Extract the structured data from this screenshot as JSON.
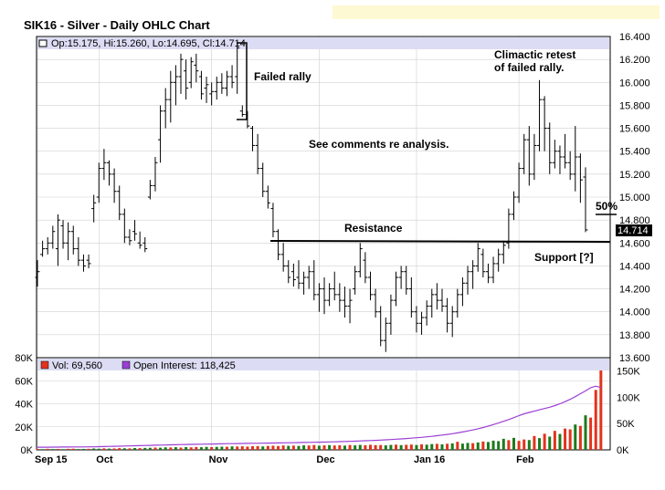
{
  "title": "SIK16 - Silver - Daily OHLC Chart",
  "colors": {
    "price_bar": "#000000",
    "volume_up": "#1c7a1c",
    "volume_down": "#e0341c",
    "open_interest": "#9b3fd4",
    "grid": "#d0d0d0",
    "legend_band": "#dcdcf4",
    "price_tag": "#000000"
  },
  "chart_data": [
    {
      "type": "ohlc",
      "title": "SIK16 - Silver - Daily OHLC Chart",
      "legend": {
        "open_label": "Op:15.175",
        "high_label": "Hi:15.260",
        "low_label": "Lo:14.695",
        "close_label": "Cl:14.714"
      },
      "ylim": [
        13.6,
        16.4
      ],
      "y_ticks": [
        "16.400",
        "16.200",
        "16.000",
        "15.800",
        "15.600",
        "15.400",
        "15.200",
        "15.000",
        "14.800",
        "14.600",
        "14.400",
        "14.200",
        "14.000",
        "13.800",
        "13.600"
      ],
      "last_price_label": "14.714",
      "x_ticks": [
        {
          "label": "Sep 15",
          "index": 0
        },
        {
          "label": "Oct",
          "index": 12
        },
        {
          "label": "Nov",
          "index": 34
        },
        {
          "label": "Dec",
          "index": 55
        },
        {
          "label": "Jan 16",
          "index": 74
        },
        {
          "label": "Feb",
          "index": 94
        }
      ],
      "bars": [
        {
          "o": 14.3,
          "h": 14.45,
          "l": 14.22,
          "c": 14.35
        },
        {
          "o": 14.5,
          "h": 14.62,
          "l": 14.48,
          "c": 14.55
        },
        {
          "o": 14.55,
          "h": 14.65,
          "l": 14.5,
          "c": 14.6
        },
        {
          "o": 14.6,
          "h": 14.75,
          "l": 14.55,
          "c": 14.7
        },
        {
          "o": 14.55,
          "h": 14.85,
          "l": 14.4,
          "c": 14.8
        },
        {
          "o": 14.75,
          "h": 14.8,
          "l": 14.55,
          "c": 14.6
        },
        {
          "o": 14.6,
          "h": 14.78,
          "l": 14.45,
          "c": 14.7
        },
        {
          "o": 14.7,
          "h": 14.75,
          "l": 14.5,
          "c": 14.55
        },
        {
          "o": 14.55,
          "h": 14.65,
          "l": 14.4,
          "c": 14.45
        },
        {
          "o": 14.45,
          "h": 14.5,
          "l": 14.35,
          "c": 14.4
        },
        {
          "o": 14.45,
          "h": 14.5,
          "l": 14.38,
          "c": 14.42
        },
        {
          "o": 14.9,
          "h": 15.02,
          "l": 14.78,
          "c": 14.95
        },
        {
          "o": 15.0,
          "h": 15.3,
          "l": 14.95,
          "c": 15.25
        },
        {
          "o": 15.25,
          "h": 15.42,
          "l": 15.15,
          "c": 15.3
        },
        {
          "o": 15.3,
          "h": 15.32,
          "l": 15.1,
          "c": 15.2
        },
        {
          "o": 15.2,
          "h": 15.25,
          "l": 14.95,
          "c": 15.05
        },
        {
          "o": 15.05,
          "h": 15.1,
          "l": 14.8,
          "c": 14.85
        },
        {
          "o": 14.85,
          "h": 14.9,
          "l": 14.6,
          "c": 14.65
        },
        {
          "o": 14.65,
          "h": 14.72,
          "l": 14.58,
          "c": 14.62
        },
        {
          "o": 14.7,
          "h": 14.8,
          "l": 14.62,
          "c": 14.68
        },
        {
          "o": 14.6,
          "h": 14.7,
          "l": 14.55,
          "c": 14.58
        },
        {
          "o": 14.6,
          "h": 14.65,
          "l": 14.52,
          "c": 14.55
        },
        {
          "o": 15.0,
          "h": 15.15,
          "l": 14.98,
          "c": 15.1
        },
        {
          "o": 15.1,
          "h": 15.35,
          "l": 15.05,
          "c": 15.3
        },
        {
          "o": 15.5,
          "h": 15.8,
          "l": 15.3,
          "c": 15.75
        },
        {
          "o": 15.75,
          "h": 15.95,
          "l": 15.6,
          "c": 15.85
        },
        {
          "o": 15.85,
          "h": 16.1,
          "l": 15.65,
          "c": 16.0
        },
        {
          "o": 16.0,
          "h": 16.15,
          "l": 15.8,
          "c": 16.05
        },
        {
          "o": 16.05,
          "h": 16.25,
          "l": 15.9,
          "c": 16.2
        },
        {
          "o": 16.1,
          "h": 16.2,
          "l": 15.85,
          "c": 15.95
        },
        {
          "o": 16.0,
          "h": 16.22,
          "l": 15.95,
          "c": 16.18
        },
        {
          "o": 16.15,
          "h": 16.25,
          "l": 16.0,
          "c": 16.1
        },
        {
          "o": 16.05,
          "h": 16.1,
          "l": 15.85,
          "c": 15.9
        },
        {
          "o": 15.95,
          "h": 16.05,
          "l": 15.82,
          "c": 15.98
        },
        {
          "o": 15.9,
          "h": 16.0,
          "l": 15.8,
          "c": 15.92
        },
        {
          "o": 15.92,
          "h": 16.05,
          "l": 15.85,
          "c": 16.0
        },
        {
          "o": 16.0,
          "h": 16.08,
          "l": 15.9,
          "c": 15.95
        },
        {
          "o": 15.95,
          "h": 16.1,
          "l": 15.88,
          "c": 16.05
        },
        {
          "o": 16.05,
          "h": 16.15,
          "l": 15.95,
          "c": 16.0
        },
        {
          "o": 16.05,
          "h": 16.35,
          "l": 15.9,
          "c": 16.3
        },
        {
          "o": 15.75,
          "h": 15.8,
          "l": 15.7,
          "c": 15.72
        },
        {
          "o": 15.72,
          "h": 15.75,
          "l": 15.6,
          "c": 15.62
        },
        {
          "o": 15.6,
          "h": 15.62,
          "l": 15.4,
          "c": 15.45
        },
        {
          "o": 15.45,
          "h": 15.55,
          "l": 15.2,
          "c": 15.25
        },
        {
          "o": 15.25,
          "h": 15.3,
          "l": 15.0,
          "c": 15.05
        },
        {
          "o": 15.05,
          "h": 15.1,
          "l": 14.9,
          "c": 14.95
        },
        {
          "o": 14.9,
          "h": 14.95,
          "l": 14.65,
          "c": 14.7
        },
        {
          "o": 14.7,
          "h": 14.72,
          "l": 14.45,
          "c": 14.5
        },
        {
          "o": 14.5,
          "h": 14.6,
          "l": 14.35,
          "c": 14.4
        },
        {
          "o": 14.4,
          "h": 14.45,
          "l": 14.25,
          "c": 14.3
        },
        {
          "o": 14.35,
          "h": 14.42,
          "l": 14.22,
          "c": 14.28
        },
        {
          "o": 14.3,
          "h": 14.45,
          "l": 14.2,
          "c": 14.25
        },
        {
          "o": 14.25,
          "h": 14.35,
          "l": 14.15,
          "c": 14.3
        },
        {
          "o": 14.3,
          "h": 14.4,
          "l": 14.2,
          "c": 14.35
        },
        {
          "o": 14.35,
          "h": 14.45,
          "l": 14.1,
          "c": 14.15
        },
        {
          "o": 14.15,
          "h": 14.25,
          "l": 14.0,
          "c": 14.2
        },
        {
          "o": 14.2,
          "h": 14.3,
          "l": 13.98,
          "c": 14.1
        },
        {
          "o": 14.1,
          "h": 14.25,
          "l": 14.05,
          "c": 14.2
        },
        {
          "o": 14.2,
          "h": 14.35,
          "l": 14.1,
          "c": 14.15
        },
        {
          "o": 14.15,
          "h": 14.25,
          "l": 14.0,
          "c": 14.1
        },
        {
          "o": 14.1,
          "h": 14.22,
          "l": 13.95,
          "c": 14.05
        },
        {
          "o": 14.05,
          "h": 14.2,
          "l": 13.9,
          "c": 14.1
        },
        {
          "o": 14.2,
          "h": 14.4,
          "l": 14.15,
          "c": 14.35
        },
        {
          "o": 14.35,
          "h": 14.6,
          "l": 14.3,
          "c": 14.55
        },
        {
          "o": 14.45,
          "h": 14.52,
          "l": 14.25,
          "c": 14.3
        },
        {
          "o": 14.3,
          "h": 14.35,
          "l": 14.1,
          "c": 14.15
        },
        {
          "o": 14.15,
          "h": 14.2,
          "l": 13.95,
          "c": 14.0
        },
        {
          "o": 14.0,
          "h": 14.05,
          "l": 13.7,
          "c": 13.75
        },
        {
          "o": 13.75,
          "h": 13.95,
          "l": 13.65,
          "c": 13.9
        },
        {
          "o": 13.9,
          "h": 14.15,
          "l": 13.8,
          "c": 14.1
        },
        {
          "o": 14.1,
          "h": 14.35,
          "l": 14.05,
          "c": 14.3
        },
        {
          "o": 14.3,
          "h": 14.4,
          "l": 14.2,
          "c": 14.35
        },
        {
          "o": 14.35,
          "h": 14.4,
          "l": 14.15,
          "c": 14.2
        },
        {
          "o": 14.2,
          "h": 14.3,
          "l": 13.95,
          "c": 14.0
        },
        {
          "o": 14.0,
          "h": 14.05,
          "l": 13.82,
          "c": 13.9
        },
        {
          "o": 13.9,
          "h": 14.0,
          "l": 13.8,
          "c": 13.95
        },
        {
          "o": 13.95,
          "h": 14.1,
          "l": 13.88,
          "c": 14.05
        },
        {
          "o": 14.05,
          "h": 14.2,
          "l": 13.95,
          "c": 14.15
        },
        {
          "o": 14.15,
          "h": 14.25,
          "l": 14.02,
          "c": 14.1
        },
        {
          "o": 14.1,
          "h": 14.2,
          "l": 14.0,
          "c": 14.05
        },
        {
          "o": 14.05,
          "h": 14.12,
          "l": 13.82,
          "c": 13.9
        },
        {
          "o": 13.9,
          "h": 14.05,
          "l": 13.78,
          "c": 14.0
        },
        {
          "o": 14.0,
          "h": 14.2,
          "l": 13.95,
          "c": 14.15
        },
        {
          "o": 14.15,
          "h": 14.3,
          "l": 14.05,
          "c": 14.25
        },
        {
          "o": 14.25,
          "h": 14.4,
          "l": 14.15,
          "c": 14.35
        },
        {
          "o": 14.35,
          "h": 14.45,
          "l": 14.2,
          "c": 14.4
        },
        {
          "o": 14.4,
          "h": 14.6,
          "l": 14.35,
          "c": 14.55
        },
        {
          "o": 14.5,
          "h": 14.55,
          "l": 14.3,
          "c": 14.35
        },
        {
          "o": 14.35,
          "h": 14.42,
          "l": 14.25,
          "c": 14.3
        },
        {
          "o": 14.3,
          "h": 14.48,
          "l": 14.25,
          "c": 14.42
        },
        {
          "o": 14.42,
          "h": 14.55,
          "l": 14.35,
          "c": 14.5
        },
        {
          "o": 14.5,
          "h": 14.62,
          "l": 14.42,
          "c": 14.58
        },
        {
          "o": 14.6,
          "h": 14.9,
          "l": 14.55,
          "c": 14.85
        },
        {
          "o": 14.85,
          "h": 15.05,
          "l": 14.8,
          "c": 15.0
        },
        {
          "o": 15.0,
          "h": 15.3,
          "l": 14.95,
          "c": 15.25
        },
        {
          "o": 15.25,
          "h": 15.55,
          "l": 15.2,
          "c": 15.5
        },
        {
          "o": 15.5,
          "h": 15.62,
          "l": 15.1,
          "c": 15.2
        },
        {
          "o": 15.2,
          "h": 15.55,
          "l": 15.15,
          "c": 15.45
        },
        {
          "o": 15.45,
          "h": 16.02,
          "l": 15.4,
          "c": 15.85
        },
        {
          "o": 15.85,
          "h": 15.88,
          "l": 15.4,
          "c": 15.6
        },
        {
          "o": 15.6,
          "h": 15.65,
          "l": 15.2,
          "c": 15.3
        },
        {
          "o": 15.3,
          "h": 15.5,
          "l": 15.25,
          "c": 15.4
        },
        {
          "o": 15.4,
          "h": 15.45,
          "l": 15.2,
          "c": 15.35
        },
        {
          "o": 15.35,
          "h": 15.55,
          "l": 15.25,
          "c": 15.3
        },
        {
          "o": 15.3,
          "h": 15.4,
          "l": 15.15,
          "c": 15.2
        },
        {
          "o": 15.2,
          "h": 15.62,
          "l": 15.05,
          "c": 15.35
        },
        {
          "o": 15.35,
          "h": 15.38,
          "l": 14.95,
          "c": 15.15
        },
        {
          "o": 15.175,
          "h": 15.26,
          "l": 14.695,
          "c": 14.714
        }
      ],
      "lower_panel": {
        "volume_label": "Vol: 69,560",
        "open_interest_label": "Open Interest: 118,425",
        "volume_ylim": [
          0,
          80000
        ],
        "volume_ticks": [
          "80K",
          "60K",
          "40K",
          "20K",
          "0K"
        ],
        "oi_ylim": [
          0,
          175000
        ],
        "oi_ticks": [
          "150K",
          "100K",
          "50K",
          "0K"
        ],
        "volume": [
          800,
          600,
          900,
          700,
          800,
          600,
          900,
          1000,
          700,
          800,
          900,
          1200,
          1000,
          1300,
          1100,
          1200,
          1500,
          1400,
          1300,
          1600,
          1500,
          1700,
          1800,
          2000,
          1900,
          2200,
          2100,
          2300,
          2000,
          2400,
          2200,
          2500,
          2300,
          2600,
          2400,
          2600,
          2800,
          2700,
          3000,
          2900,
          3100,
          2800,
          3200,
          3300,
          3000,
          3400,
          3600,
          3300,
          3800,
          3500,
          3700,
          3400,
          3900,
          3800,
          4200,
          3600,
          3900,
          4100,
          3800,
          4000,
          3700,
          4200,
          3900,
          4300,
          4000,
          4400,
          4100,
          4200,
          3900,
          4300,
          4500,
          4100,
          4400,
          4600,
          4200,
          4800,
          4500,
          5000,
          5200,
          4800,
          5300,
          5600,
          7000,
          5400,
          6000,
          5800,
          6400,
          7200,
          6800,
          8000,
          7600,
          9600,
          8400,
          10400,
          7800,
          9000,
          8500,
          12000,
          10200,
          14000,
          11500,
          16500,
          13800,
          18500,
          17800,
          22000,
          20800,
          30000,
          28000,
          52000,
          69560
        ],
        "volume_down": [
          1,
          0,
          1,
          0,
          1,
          0,
          1,
          1,
          0,
          0,
          1,
          0,
          0,
          1,
          0,
          1,
          1,
          0,
          1,
          0,
          1,
          0,
          0,
          1,
          0,
          0,
          1,
          0,
          1,
          0,
          1,
          1,
          0,
          0,
          1,
          0,
          0,
          1,
          0,
          1,
          1,
          1,
          1,
          1,
          0,
          1,
          1,
          1,
          1,
          0,
          1,
          0,
          0,
          1,
          1,
          0,
          1,
          0,
          1,
          1,
          0,
          1,
          0,
          0,
          1,
          1,
          1,
          1,
          0,
          0,
          1,
          0,
          1,
          1,
          0,
          1,
          0,
          0,
          1,
          0,
          1,
          0,
          1,
          0,
          0,
          1,
          0,
          1,
          0,
          0,
          0,
          0,
          1,
          0,
          1,
          1,
          0,
          1,
          0,
          1,
          0,
          1,
          0,
          1,
          1,
          0,
          1,
          0,
          1,
          1,
          1
        ],
        "open_interest": [
          5000,
          5000,
          5100,
          5200,
          5200,
          5300,
          5400,
          5500,
          5500,
          5600,
          5700,
          5800,
          6000,
          6200,
          6500,
          6800,
          7000,
          7200,
          7500,
          7800,
          8000,
          8300,
          8500,
          8800,
          9000,
          9200,
          9500,
          9700,
          10000,
          10200,
          10400,
          10600,
          10800,
          11000,
          11100,
          11300,
          11500,
          11700,
          11800,
          12000,
          12100,
          12300,
          12400,
          12500,
          12700,
          12800,
          13000,
          13100,
          13300,
          13500,
          13600,
          13800,
          14000,
          14200,
          14400,
          14600,
          14800,
          15000,
          15300,
          15600,
          15900,
          16200,
          16500,
          16900,
          17300,
          17700,
          18100,
          18600,
          19100,
          19600,
          20200,
          20800,
          21500,
          22200,
          23000,
          23800,
          24700,
          25700,
          26800,
          28000,
          29300,
          30700,
          32300,
          34000,
          35800,
          37800,
          40000,
          42500,
          45200,
          48000,
          51000,
          54200,
          57600,
          61200,
          65000,
          68500,
          71000,
          73500,
          76000,
          78500,
          81000,
          84000,
          87500,
          91500,
          96000,
          101000,
          106500,
          112000,
          118000,
          121000,
          118425
        ]
      },
      "annotations": {
        "failed_rally": "Failed rally",
        "comments": "See comments re analysis.",
        "resistance": "Resistance",
        "climactic_line1": "Climactic retest",
        "climactic_line2": "of failed rally.",
        "pct_50": "50%",
        "support": "Support [?]"
      }
    }
  ]
}
